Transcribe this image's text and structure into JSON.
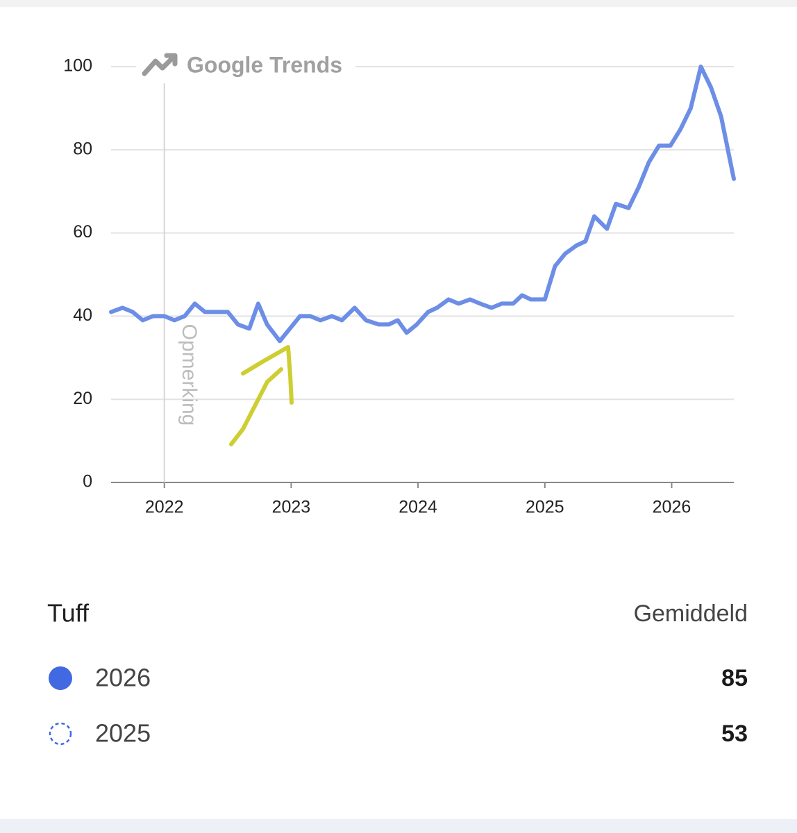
{
  "chart_data": {
    "type": "line",
    "watermark": "Google Trends",
    "annotation": "Opmerking",
    "color": "#6c8ee6",
    "grid": true,
    "x": [
      2021.58,
      2021.67,
      2021.75,
      2021.83,
      2021.91,
      2022.0,
      2022.08,
      2022.16,
      2022.24,
      2022.32,
      2022.4,
      2022.5,
      2022.58,
      2022.67,
      2022.74,
      2022.81,
      2022.91,
      2022.99,
      2023.07,
      2023.15,
      2023.23,
      2023.32,
      2023.4,
      2023.5,
      2023.59,
      2023.69,
      2023.77,
      2023.84,
      2023.91,
      2023.99,
      2024.08,
      2024.15,
      2024.24,
      2024.32,
      2024.41,
      2024.49,
      2024.58,
      2024.66,
      2024.75,
      2024.82,
      2024.89,
      2025.0,
      2025.08,
      2025.16,
      2025.25,
      2025.32,
      2025.39,
      2025.49,
      2025.56,
      2025.66,
      2025.74,
      2025.82,
      2025.9,
      2025.99,
      2026.07,
      2026.15,
      2026.23,
      2026.31,
      2026.39,
      2026.49
    ],
    "values": [
      41,
      42,
      41,
      39,
      40,
      40,
      39,
      40,
      43,
      41,
      41,
      41,
      38,
      37,
      43,
      38,
      34,
      37,
      40,
      40,
      39,
      40,
      39,
      42,
      39,
      38,
      38,
      39,
      36,
      38,
      41,
      42,
      44,
      43,
      44,
      43,
      42,
      43,
      43,
      45,
      44,
      44,
      52,
      55,
      57,
      58,
      64,
      61,
      67,
      66,
      71,
      77,
      81,
      81,
      85,
      90,
      100,
      95,
      88,
      73
    ],
    "xlim": [
      2021.58,
      2026.49
    ],
    "xticks": [
      2022,
      2023,
      2024,
      2025,
      2026
    ],
    "ylim": [
      0,
      100
    ],
    "yticks": [
      0,
      20,
      40,
      60,
      80,
      100
    ]
  },
  "legend": {
    "title": "Tuff",
    "column": "Gemiddeld",
    "rows": [
      {
        "label": "2026",
        "average": 85,
        "color": "#4169e1",
        "style": "filled"
      },
      {
        "label": "2025",
        "average": 53,
        "color": "#4169e1",
        "style": "dashed"
      }
    ]
  }
}
